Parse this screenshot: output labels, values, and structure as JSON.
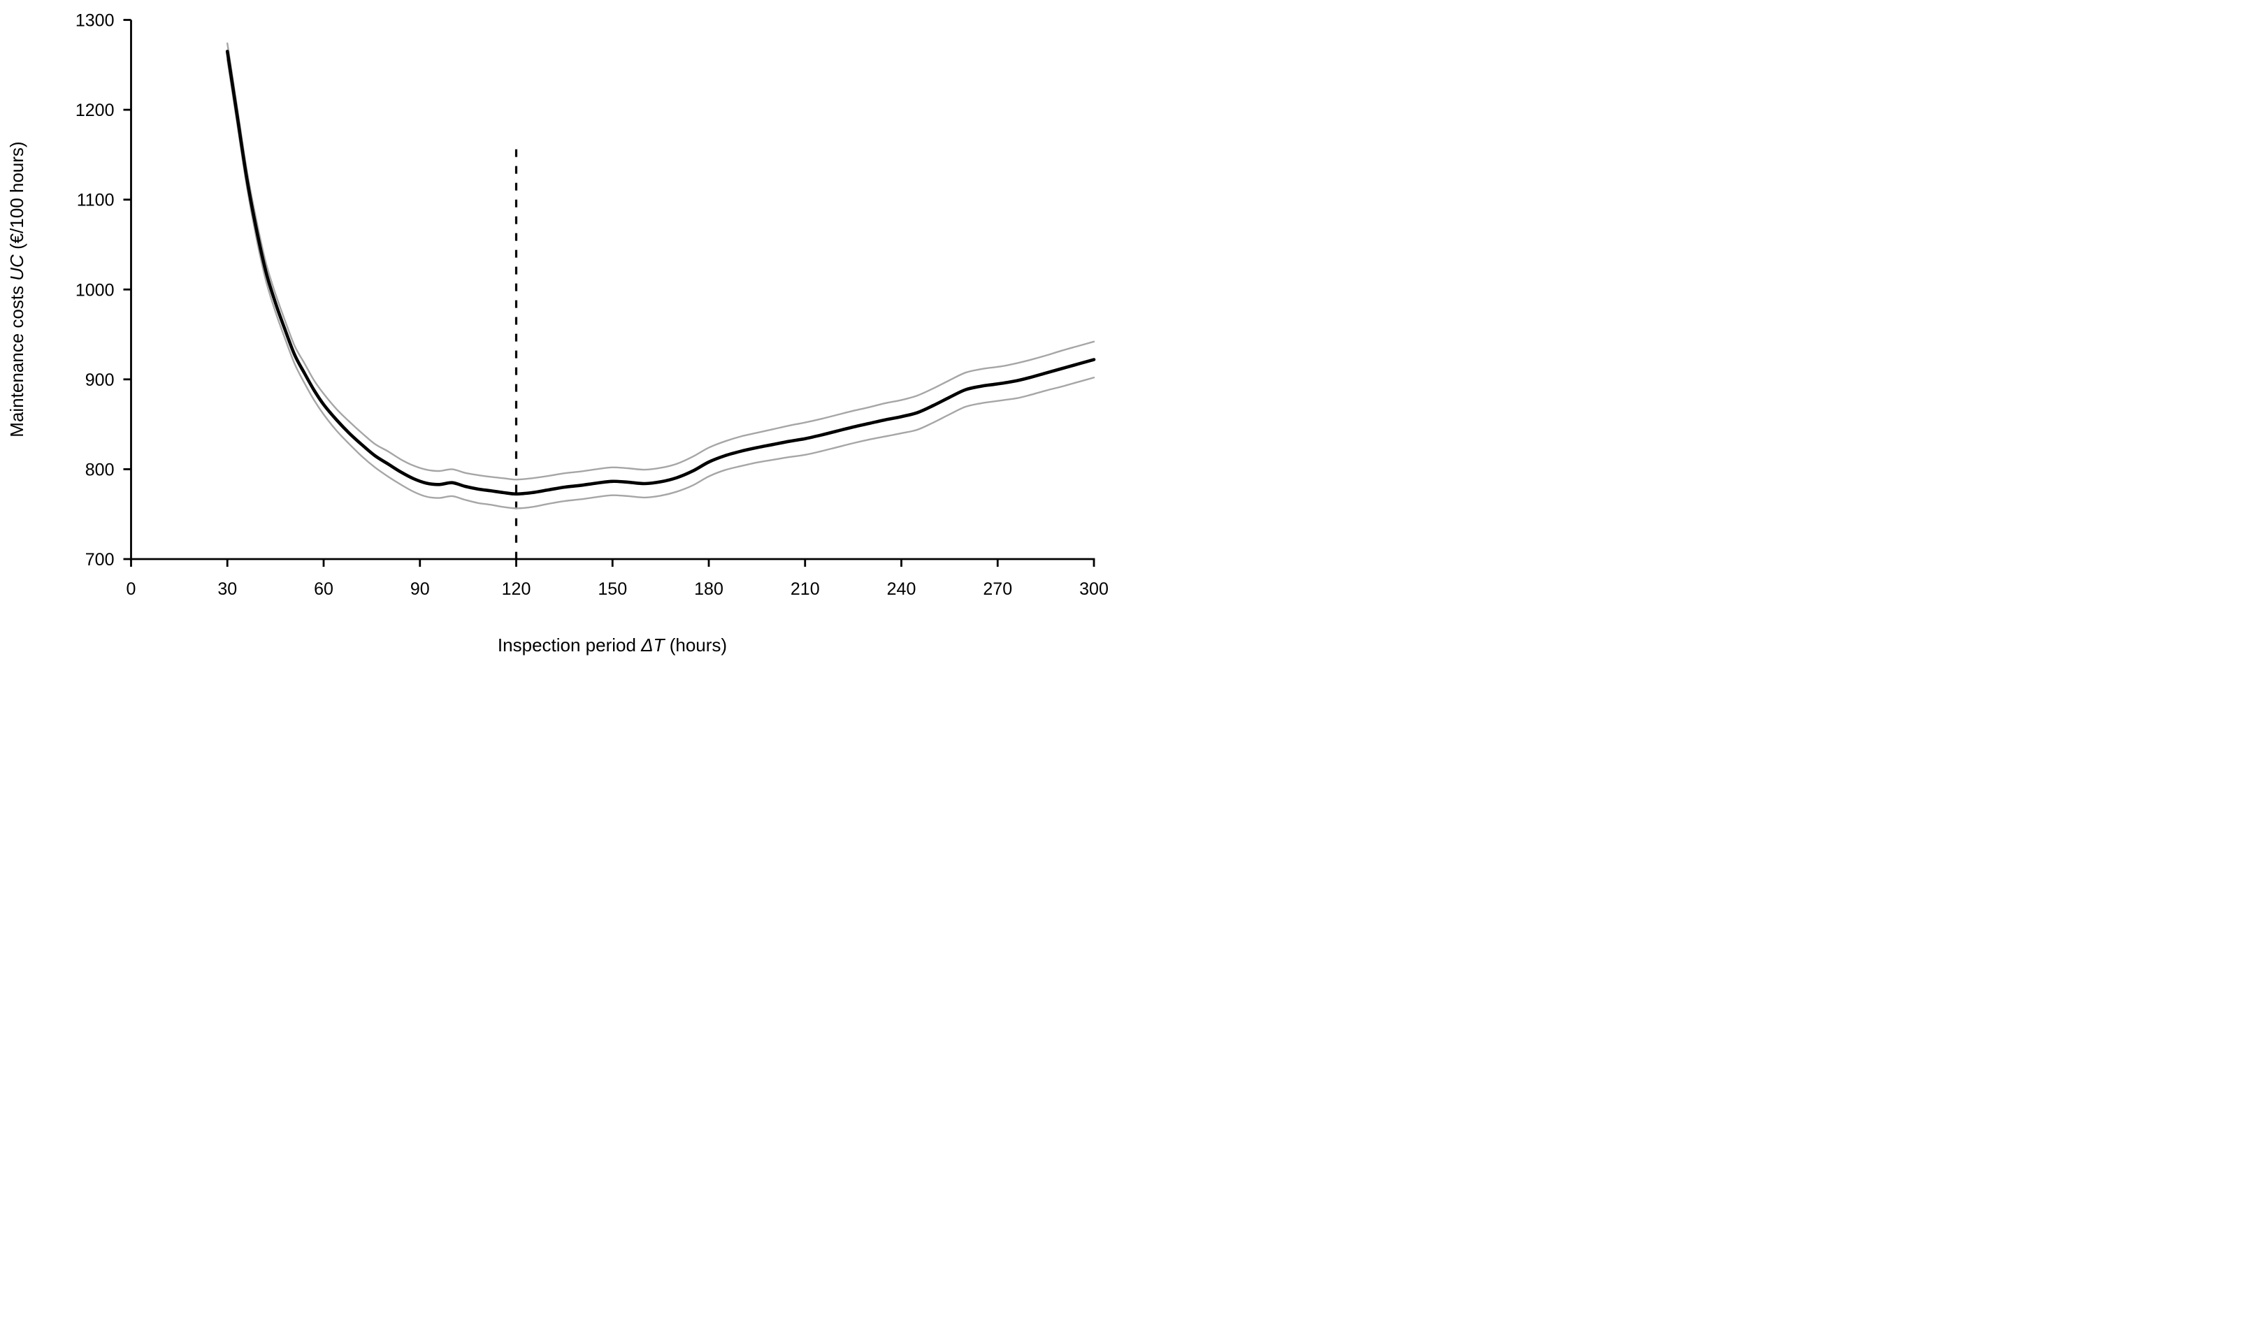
{
  "chart_data": {
    "type": "line",
    "title": "",
    "xlabel_parts": {
      "pre": "Inspection period ",
      "italic": "ΔT",
      "post": " (hours)"
    },
    "ylabel_parts": {
      "pre": "Maintenance costs ",
      "italic": "UC",
      "post": " (€/100 hours)"
    },
    "xlim": [
      0,
      300
    ],
    "ylim": [
      700,
      1300
    ],
    "x_ticks": [
      "0",
      "30",
      "60",
      "90",
      "120",
      "150",
      "180",
      "210",
      "240",
      "270",
      "300"
    ],
    "y_ticks": [
      "700",
      "800",
      "900",
      "1000",
      "1100",
      "1200",
      "1300"
    ],
    "grid": false,
    "legend": "none",
    "background_color": "#ffffff",
    "axis_color": "#000000",
    "annotation": {
      "name": "optimal-inspection-period-marker",
      "type": "vertical-dashed-line",
      "x": 120,
      "y_bottom": 700,
      "y_top": 1156,
      "color": "#000000"
    },
    "x_shared": [
      30,
      33,
      36,
      39,
      42,
      45,
      48,
      51,
      54,
      57,
      60,
      64,
      68,
      72,
      76,
      80,
      84,
      88,
      92,
      96,
      100,
      104,
      108,
      112,
      116,
      120,
      125,
      130,
      135,
      140,
      145,
      150,
      155,
      160,
      165,
      170,
      175,
      180,
      185,
      190,
      195,
      200,
      205,
      210,
      215,
      220,
      225,
      230,
      235,
      240,
      245,
      250,
      255,
      260,
      265,
      268,
      272,
      276,
      280,
      285,
      290,
      295,
      300
    ],
    "series": [
      {
        "name": "mean-maintenance-cost",
        "color": "#000000",
        "style": "solid-thick",
        "y": [
          1265,
          1195,
          1125,
          1068,
          1020,
          985,
          955,
          927,
          907,
          888,
          872,
          855,
          840,
          827,
          815,
          806,
          797,
          789.5,
          784.5,
          783,
          785,
          781,
          778,
          776,
          774,
          772.5,
          774,
          777,
          780,
          782,
          784.5,
          786.5,
          785.5,
          784,
          786,
          790.5,
          798,
          808,
          815,
          820,
          824,
          827.5,
          831,
          834,
          838,
          842.5,
          847,
          851,
          855,
          858.5,
          863,
          871,
          880,
          888.5,
          892.5,
          894,
          896,
          898.5,
          902,
          907,
          912,
          917,
          922
        ]
      },
      {
        "name": "upper-confidence-bound",
        "color": "#a6a6a6",
        "style": "solid-thin",
        "y": [
          1274,
          1204,
          1134,
          1078,
          1030,
          995,
          965,
          937,
          918,
          899,
          884,
          867,
          853,
          840,
          828,
          820,
          811,
          804,
          799.5,
          798,
          800,
          796,
          793.5,
          791.5,
          790,
          788.5,
          790,
          792.5,
          795.5,
          797.5,
          800,
          802,
          801,
          799.5,
          801.5,
          806,
          814,
          824,
          831,
          836.5,
          840.5,
          844.5,
          848.5,
          852,
          856,
          860.5,
          865,
          869,
          873.5,
          877,
          882,
          890,
          899,
          907.5,
          911.5,
          913,
          915,
          918,
          921.5,
          926.5,
          932,
          937,
          942
        ]
      },
      {
        "name": "lower-confidence-bound",
        "color": "#a6a6a6",
        "style": "solid-thin",
        "y": [
          1256,
          1186,
          1116,
          1058,
          1010,
          975,
          945,
          917,
          896,
          877,
          861,
          843,
          828,
          814,
          802,
          792,
          783,
          775,
          769.5,
          768,
          770,
          766,
          762.5,
          760.5,
          758,
          756.5,
          758,
          761.5,
          764.5,
          766.5,
          769,
          771,
          770,
          768.5,
          770.5,
          775,
          782,
          792,
          799,
          803.5,
          807.5,
          810.5,
          813.5,
          816,
          820,
          824.5,
          829,
          833,
          836.5,
          840,
          844,
          852,
          861,
          869.5,
          873.5,
          875,
          877,
          879,
          882.5,
          887.5,
          892,
          897,
          902
        ]
      }
    ]
  }
}
